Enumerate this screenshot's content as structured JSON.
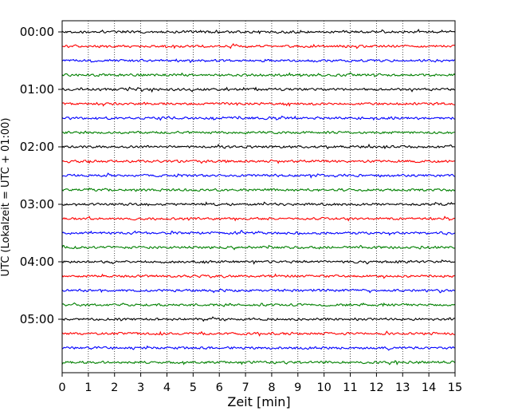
{
  "chart_data": {
    "type": "line",
    "xlabel": "Zeit  [min]",
    "ylabel": "UTC (Lokalzeit = UTC + 01:00)",
    "xlim": [
      0,
      15
    ],
    "x_ticks": [
      "0",
      "1",
      "2",
      "3",
      "4",
      "5",
      "6",
      "7",
      "8",
      "9",
      "10",
      "11",
      "12",
      "13",
      "14",
      "15"
    ],
    "y_ticks": [
      "00:00",
      "01:00",
      "02:00",
      "03:00",
      "04:00",
      "05:00"
    ],
    "trace_start_utc_minutes": 0,
    "trace_interval_minutes": 15,
    "trace_count": 24,
    "trace_colors": [
      "#000000",
      "#ff0000",
      "#0000ff",
      "#008000"
    ],
    "grid": "vertical dotted"
  }
}
